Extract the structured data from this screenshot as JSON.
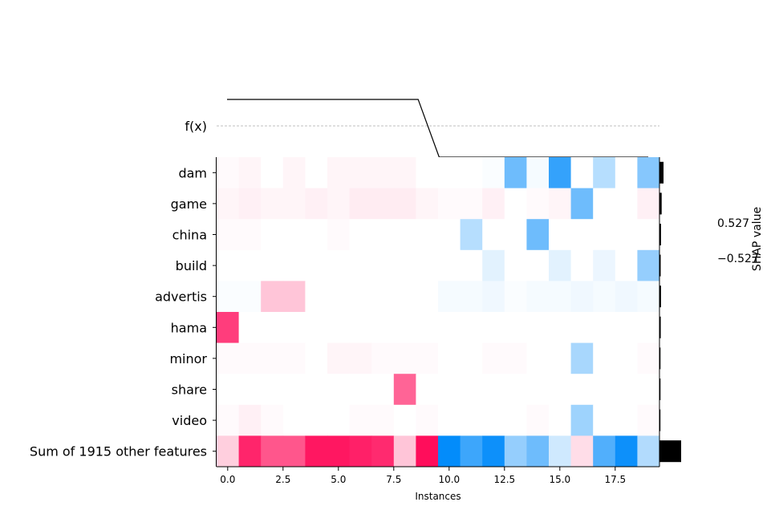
{
  "chart_data": {
    "type": "heatmap",
    "title": "",
    "xlabel": "Instances",
    "ylabel": "",
    "fx_label": "f(x)",
    "colorbar": {
      "label": "SHAP value",
      "high_label": "0.527",
      "low_label": "−0.527",
      "vmin": -0.527,
      "vmax": 0.527
    },
    "x_ticks": [
      "0.0",
      "2.5",
      "5.0",
      "7.5",
      "10.0",
      "12.5",
      "15.0",
      "17.5"
    ],
    "x_tick_values": [
      0,
      2.5,
      5,
      7.5,
      10,
      12.5,
      15,
      17.5
    ],
    "instances": [
      0,
      1,
      2,
      3,
      4,
      5,
      6,
      7,
      8,
      9,
      10,
      11,
      12,
      13,
      14,
      15,
      16,
      17,
      18,
      19
    ],
    "features": [
      "dam",
      "game",
      "china",
      "build",
      "advertis",
      "hama",
      "minor",
      "share",
      "video",
      "Sum of 1915 other features"
    ],
    "values": [
      [
        0.01,
        0.02,
        0.0,
        0.02,
        0.0,
        0.02,
        0.02,
        0.02,
        0.02,
        0.0,
        0.0,
        0.0,
        -0.01,
        -0.3,
        -0.02,
        -0.42,
        0.0,
        -0.15,
        0.0,
        -0.25
      ],
      [
        0.02,
        0.03,
        0.02,
        0.02,
        0.03,
        0.02,
        0.04,
        0.04,
        0.04,
        0.02,
        0.01,
        0.01,
        0.03,
        0.0,
        0.01,
        0.02,
        -0.3,
        0.0,
        0.0,
        0.03
      ],
      [
        0.01,
        0.01,
        0.0,
        0.0,
        0.0,
        0.01,
        0.0,
        0.0,
        0.0,
        0.0,
        0.0,
        -0.15,
        0.0,
        0.0,
        -0.3,
        0.0,
        0.0,
        0.0,
        0.0,
        0.0
      ],
      [
        0.0,
        0.0,
        0.0,
        0.0,
        0.0,
        0.0,
        0.0,
        0.0,
        0.0,
        0.0,
        0.0,
        0.0,
        -0.06,
        0.0,
        0.0,
        -0.06,
        0.0,
        -0.04,
        0.0,
        -0.22
      ],
      [
        -0.01,
        -0.01,
        0.12,
        0.12,
        0.0,
        0.0,
        0.0,
        0.0,
        0.0,
        0.0,
        -0.02,
        -0.02,
        -0.03,
        -0.01,
        -0.02,
        -0.02,
        -0.03,
        -0.02,
        -0.03,
        -0.02
      ],
      [
        0.4,
        0.0,
        0.0,
        0.0,
        0.0,
        0.0,
        0.0,
        0.0,
        0.0,
        0.0,
        0.0,
        0.0,
        0.0,
        0.0,
        0.0,
        0.0,
        0.0,
        0.0,
        0.0,
        0.0
      ],
      [
        0.01,
        0.01,
        0.01,
        0.01,
        0.0,
        0.02,
        0.02,
        0.01,
        0.01,
        0.01,
        0.0,
        0.0,
        0.01,
        0.01,
        0.0,
        0.0,
        -0.18,
        0.0,
        0.0,
        0.01
      ],
      [
        0.0,
        0.0,
        0.0,
        0.0,
        0.0,
        0.0,
        0.0,
        0.0,
        0.32,
        0.0,
        0.0,
        0.0,
        0.0,
        0.0,
        0.0,
        0.0,
        0.0,
        0.0,
        0.0,
        0.0
      ],
      [
        0.01,
        0.03,
        0.01,
        0.0,
        0.0,
        0.0,
        0.01,
        0.01,
        0.0,
        0.01,
        0.0,
        0.0,
        0.0,
        0.0,
        0.01,
        0.0,
        -0.2,
        0.0,
        0.0,
        0.01
      ],
      [
        0.1,
        0.45,
        0.35,
        0.35,
        0.48,
        0.48,
        0.46,
        0.44,
        0.12,
        0.5,
        -0.52,
        -0.4,
        -0.5,
        -0.22,
        -0.3,
        -0.1,
        0.07,
        -0.36,
        -0.5,
        -0.16
      ]
    ],
    "fx": [
      0.85,
      0.85,
      0.85,
      0.85,
      0.85,
      0.85,
      0.85,
      0.85,
      0.85,
      0.85,
      -0.55,
      -0.55,
      -0.55,
      -0.55,
      -0.55,
      -0.55,
      -0.55,
      -0.55,
      -0.55,
      -0.55
    ],
    "fx_step_index": 9,
    "grid": false
  }
}
